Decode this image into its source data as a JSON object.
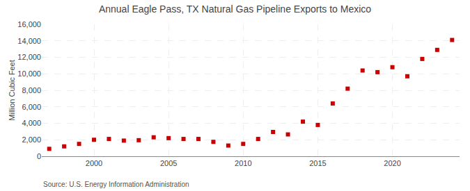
{
  "chart_data": {
    "type": "scatter",
    "title": "Annual Eagle Pass, TX Natural Gas Pipeline Exports to Mexico",
    "ylabel": "Million Cubic Feet",
    "annotations": [
      "Source: U.S. Energy Information Administration"
    ],
    "x": [
      1997,
      1998,
      1999,
      2000,
      2001,
      2002,
      2003,
      2004,
      2005,
      2006,
      2007,
      2008,
      2009,
      2010,
      2011,
      2012,
      2013,
      2014,
      2015,
      2016,
      2017,
      2018,
      2019,
      2020,
      2021,
      2022,
      2023,
      2024
    ],
    "values": [
      900,
      1200,
      1500,
      2000,
      2100,
      1900,
      1950,
      2300,
      2200,
      2100,
      2100,
      1750,
      1300,
      1500,
      2100,
      2950,
      2650,
      4200,
      3800,
      6400,
      8200,
      10400,
      10200,
      10800,
      9700,
      11800,
      12900,
      14100
    ],
    "color": "#cc0000",
    "marker": "square",
    "xlim": [
      1996.5,
      2024.5
    ],
    "xticks": [
      2000,
      2005,
      2010,
      2015,
      2020
    ],
    "ylim": [
      0,
      16000
    ],
    "yticks": [
      0,
      {
        "value": 2000,
        "label": "2,000"
      },
      {
        "value": 4000,
        "label": "4,000"
      },
      {
        "value": 6000,
        "label": "6,000"
      },
      {
        "value": 8000,
        "label": "8,000"
      },
      {
        "value": 10000,
        "label": "10,000"
      },
      {
        "value": 12000,
        "label": "12,000"
      },
      {
        "value": 14000,
        "label": "14,000"
      },
      {
        "value": 16000,
        "label": "16,000"
      }
    ],
    "grid": true
  }
}
